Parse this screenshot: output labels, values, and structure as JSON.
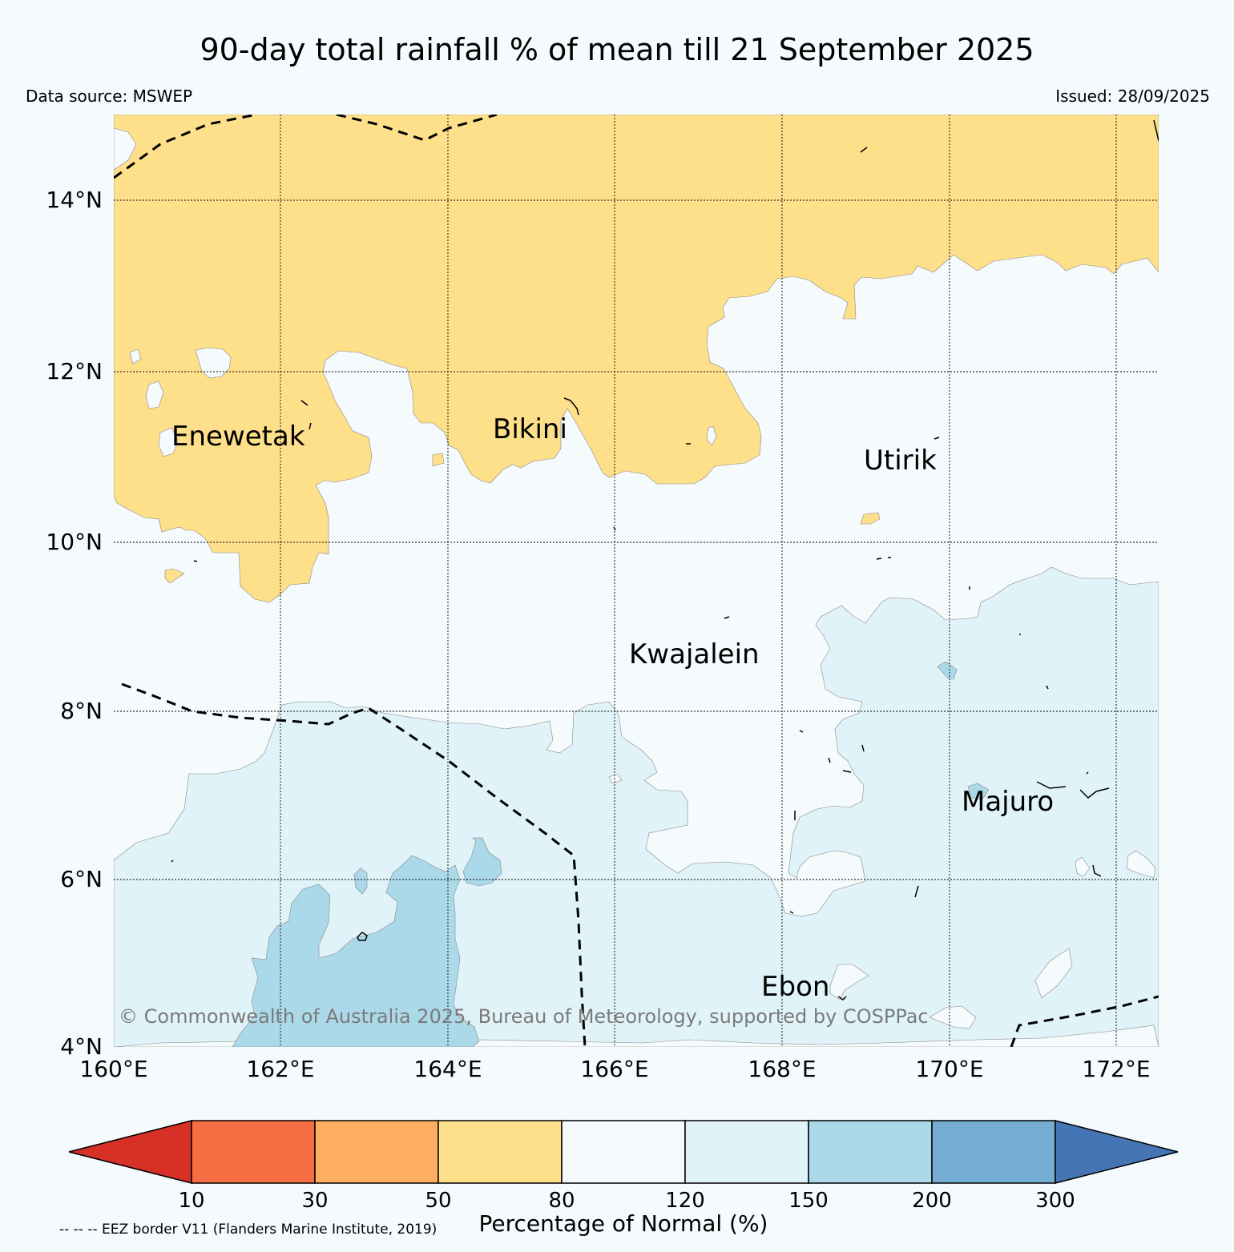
{
  "title": "90-day total rainfall % of mean till 21 September 2025",
  "data_source": "Data source: MSWEP",
  "issued": "Issued: 28/09/2025",
  "map": {
    "lat_labels": [
      "14°N",
      "12°N",
      "10°N",
      "8°N",
      "6°N",
      "4°N"
    ],
    "lon_labels": [
      "160°E",
      "162°E",
      "164°E",
      "166°E",
      "168°E",
      "170°E",
      "172°E"
    ],
    "places": [
      {
        "name": "Enewetak"
      },
      {
        "name": "Bikini"
      },
      {
        "name": "Utirik"
      },
      {
        "name": "Kwajalein"
      },
      {
        "name": "Majuro"
      },
      {
        "name": "Ebon"
      }
    ],
    "copyright": "© Commonwealth of Australia 2025, Bureau of Meteorology, supported by COSPPac",
    "region_colors": {
      "dry_50_80": "#fee08b",
      "normal_80_120": "#f5fafd",
      "wet_120_150": "#e0f3f8",
      "wet_150_200": "#abd9e9"
    }
  },
  "colorbar": {
    "title": "Percentage of Normal (%)",
    "ticks": [
      "10",
      "30",
      "50",
      "80",
      "120",
      "150",
      "200",
      "300"
    ],
    "colors": [
      "#d73027",
      "#f46d43",
      "#fdae61",
      "#fee08b",
      "#f5fafd",
      "#e0f3f8",
      "#abd9e9",
      "#74add1",
      "#4575b4"
    ]
  },
  "eez_note": "-- -- -- EEZ border V11 (Flanders Marine Institute, 2019)"
}
